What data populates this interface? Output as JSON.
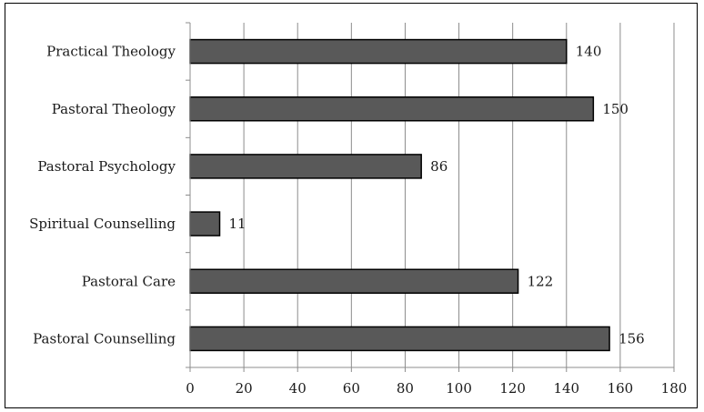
{
  "chart_data": {
    "type": "bar",
    "orientation": "horizontal",
    "categories": [
      "Practical Theology",
      "Pastoral Theology",
      "Pastoral Psychology",
      "Spiritual Counselling",
      "Pastoral Care",
      "Pastoral Counselling"
    ],
    "values": [
      140,
      150,
      86,
      11,
      122,
      156
    ],
    "data_labels": [
      "140",
      "150",
      "86",
      "11",
      "122",
      "156"
    ],
    "xlim": [
      0,
      180
    ],
    "x_ticks": [
      0,
      20,
      40,
      60,
      80,
      100,
      120,
      140,
      160,
      180
    ],
    "x_tick_labels": [
      "0",
      "20",
      "40",
      "60",
      "80",
      "100",
      "120",
      "140",
      "160",
      "180"
    ],
    "grid": "vertical",
    "legend": "none",
    "bar_color": "#595959",
    "bar_edge_color": "#000000",
    "grid_color": "#8c8c8c"
  }
}
